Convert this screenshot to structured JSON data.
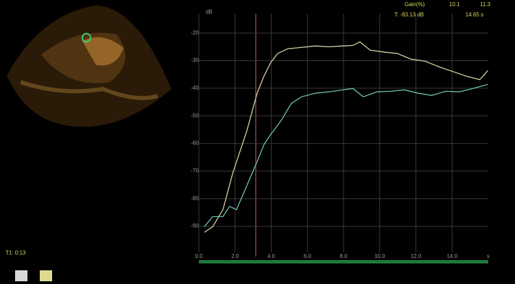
{
  "chart_data": {
    "type": "line",
    "y_label": "dB",
    "x_label": "s",
    "annotations": [
      "Gain(%)",
      "10.1",
      "11.3",
      "T: -83.13 dB",
      "14.65 s",
      "T1: 0:13"
    ],
    "xlim": [
      0,
      16
    ],
    "ylim": [
      -101,
      -13
    ],
    "xticks": [
      {
        "value": 0,
        "label": "0.0"
      },
      {
        "value": 2,
        "label": "2.0"
      },
      {
        "value": 4,
        "label": "4.0"
      },
      {
        "value": 6,
        "label": "6.0"
      },
      {
        "value": 8,
        "label": "8.0"
      },
      {
        "value": 10,
        "label": "10.0"
      },
      {
        "value": 12,
        "label": "12.0"
      },
      {
        "value": 14,
        "label": "14.0"
      }
    ],
    "yticks": [
      -20,
      -30,
      -40,
      -50,
      -60,
      -70,
      -80,
      -90
    ],
    "grid": true,
    "series": [
      {
        "color": "#d9d6a8",
        "x": [
          0.3,
          0.76,
          1.33,
          1.89,
          2.65,
          3.22,
          3.6,
          3.98,
          4.36,
          4.92,
          5.68,
          6.44,
          7.2,
          7.95,
          8.52,
          8.9,
          9.47,
          10.23,
          10.98,
          11.74,
          12.5,
          13.26,
          14.02,
          14.77,
          15.53,
          15.98
        ],
        "values": [
          -92.2,
          -90.2,
          -84,
          -70.4,
          -55.5,
          -41.8,
          -35.6,
          -30.6,
          -27.4,
          -25.7,
          -25.2,
          -24.7,
          -25,
          -24.7,
          -24.5,
          -23.2,
          -26.2,
          -26.9,
          -27.4,
          -29.5,
          -30.2,
          -32.2,
          -33.9,
          -35.6,
          -36.9,
          -33.6
        ]
      },
      {
        "color": "#6fc6b6",
        "x": [
          0.3,
          0.76,
          1.33,
          1.7,
          2.08,
          2.65,
          3.22,
          3.6,
          3.98,
          4.55,
          5.11,
          5.68,
          6.44,
          7.2,
          7.95,
          8.52,
          9.09,
          9.85,
          10.6,
          11.36,
          12.12,
          12.88,
          13.64,
          14.39,
          15.15,
          15.98
        ],
        "values": [
          -90.2,
          -86.5,
          -86.5,
          -82.8,
          -84,
          -75.3,
          -66.6,
          -60.4,
          -56.7,
          -51.7,
          -45.5,
          -43.1,
          -41.8,
          -41.3,
          -40.6,
          -40.1,
          -43.1,
          -41.3,
          -41.1,
          -40.6,
          -41.8,
          -42.6,
          -41.1,
          -41.3,
          -40.1,
          -38.6
        ]
      }
    ]
  }
}
